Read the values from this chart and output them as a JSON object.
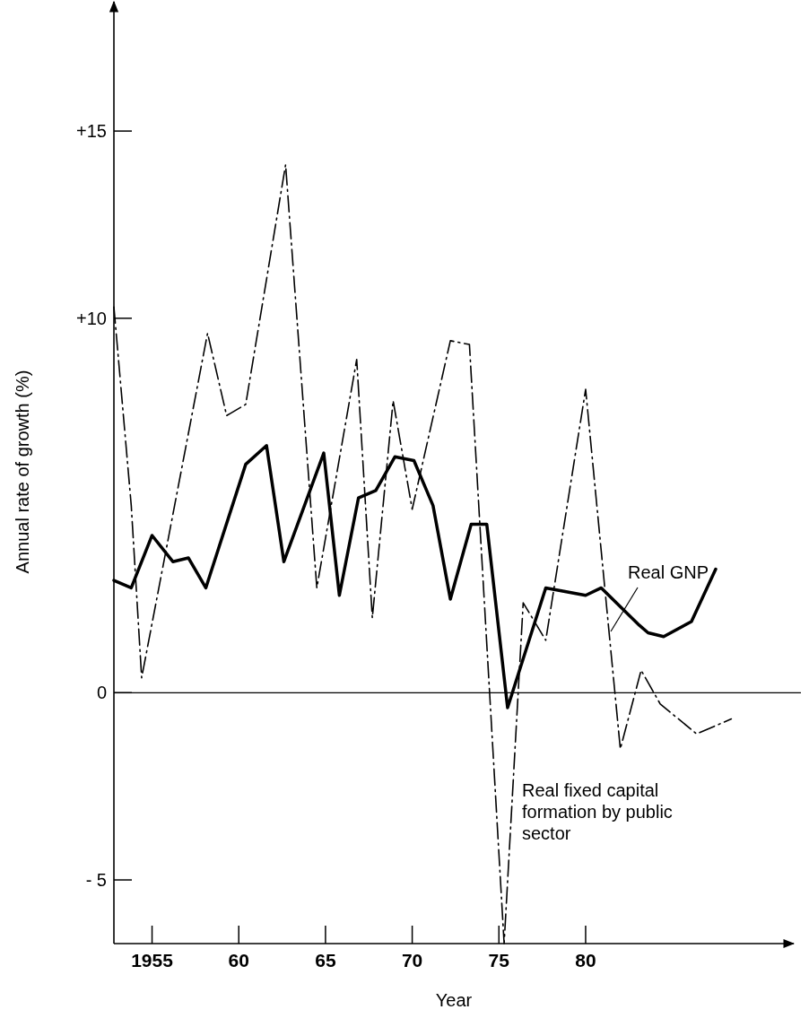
{
  "chart_data": {
    "type": "line",
    "xlabel": "Year",
    "ylabel": "Annual rate of growth (%)",
    "xlim": [
      1952.8,
      1992
    ],
    "xticks": [
      {
        "value": 1955,
        "label": "1955"
      },
      {
        "value": 1960,
        "label": "60"
      },
      {
        "value": 1965,
        "label": "65"
      },
      {
        "value": 1970,
        "label": "70"
      },
      {
        "value": 1975,
        "label": "75"
      },
      {
        "value": 1980,
        "label": "80"
      }
    ],
    "ylim": [
      -6.7,
      18.5
    ],
    "yticks": [
      {
        "value": -5,
        "label": "- 5"
      },
      0,
      {
        "value": 10,
        "label": "+10"
      },
      {
        "value": 15,
        "label": "+15"
      }
    ],
    "grid": false,
    "legend": false,
    "marker": "none",
    "ref_lines": [
      {
        "axis": "y",
        "value": 0,
        "color": "#000000",
        "line_style": "solid"
      }
    ],
    "series": [
      {
        "name": "Real GNP",
        "color": "#000000",
        "line_style": "solid",
        "x": [
          1952.8,
          1953.8,
          1955.0,
          1956.2,
          1957.1,
          1958.1,
          1960.4,
          1961.6,
          1962.6,
          1964.9,
          1965.8,
          1966.9,
          1967.9,
          1969.0,
          1970.1,
          1971.2,
          1972.2,
          1973.4,
          1974.3,
          1975.5,
          1977.7,
          1980.0,
          1980.9,
          1983.1,
          1983.6,
          1984.5,
          1986.1,
          1987.5
        ],
        "values": [
          3.0,
          2.8,
          4.2,
          3.5,
          3.6,
          2.8,
          6.1,
          6.6,
          3.5,
          6.4,
          2.6,
          5.2,
          5.4,
          6.3,
          6.2,
          5.0,
          2.5,
          4.5,
          4.5,
          -0.4,
          2.8,
          2.6,
          2.8,
          1.8,
          1.6,
          1.5,
          1.9,
          3.3
        ]
      },
      {
        "name": "Real fixed capital formation by public sector",
        "color": "#000000",
        "line_style": "dashed",
        "x": [
          1952.8,
          1953.8,
          1954.4,
          1958.2,
          1959.3,
          1960.4,
          1962.7,
          1964.5,
          1966.8,
          1967.7,
          1968.9,
          1970.0,
          1972.2,
          1973.3,
          1975.3,
          1976.4,
          1977.7,
          1980.0,
          1982.0,
          1983.2,
          1984.3,
          1986.4,
          1988.4
        ],
        "values": [
          10.3,
          5.0,
          0.4,
          9.6,
          7.4,
          7.7,
          14.1,
          2.8,
          8.9,
          2.0,
          7.8,
          4.9,
          9.4,
          9.3,
          -6.7,
          2.4,
          1.4,
          8.1,
          -1.5,
          0.6,
          -0.3,
          -1.1,
          -0.7
        ]
      }
    ]
  }
}
